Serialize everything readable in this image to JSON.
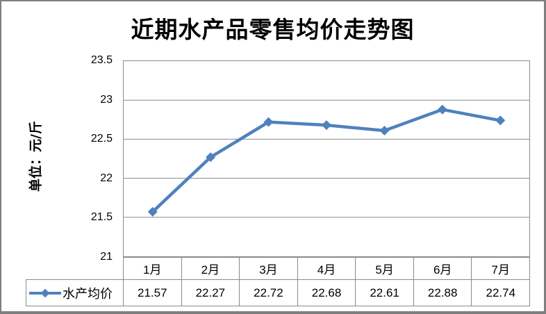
{
  "window": {
    "background": "#ffffff",
    "frame_border_color": "#7f7f7f"
  },
  "chart_data": {
    "type": "line",
    "title": "近期水产品零售均价走势图",
    "ylabel": "单位：元/斤",
    "xlabel": "",
    "categories": [
      "1月",
      "2月",
      "3月",
      "4月",
      "5月",
      "6月",
      "7月"
    ],
    "series": [
      {
        "name": "水产均价",
        "color": "#4F81BD",
        "marker": "diamond",
        "values": [
          21.57,
          22.27,
          22.72,
          22.68,
          22.61,
          22.88,
          22.74
        ]
      }
    ],
    "value_labels": [
      "21.57",
      "22.27",
      "22.72",
      "22.68",
      "22.61",
      "22.88",
      "22.74"
    ],
    "ylim": [
      21,
      23.5
    ],
    "y_tick_step": 0.5,
    "y_tick_labels": [
      "23.5",
      "23",
      "22.5",
      "22",
      "21.5",
      "21"
    ],
    "grid": true,
    "grid_color": "#8a8a8a",
    "legend_position": "bottom-table-left"
  }
}
